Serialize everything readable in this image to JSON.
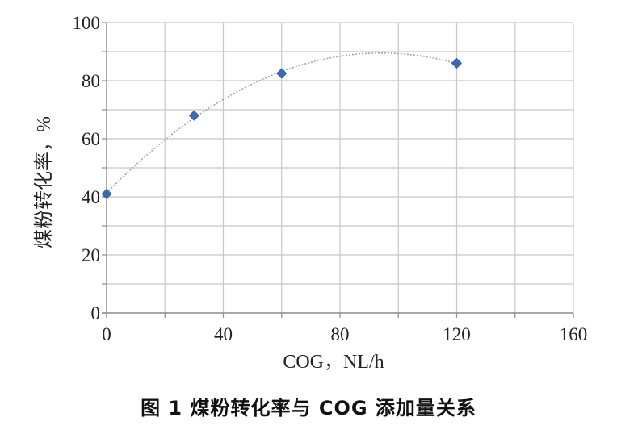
{
  "caption": "图 1 煤粉转化率与 COG 添加量关系",
  "chart_data": {
    "type": "scatter",
    "title": "",
    "xlabel": "COG，NL/h",
    "ylabel": "煤粉转化率，%",
    "xlim": [
      0,
      160
    ],
    "ylim": [
      0,
      100
    ],
    "x_ticks": [
      0,
      40,
      80,
      120,
      160
    ],
    "y_ticks": [
      0,
      20,
      40,
      60,
      80,
      100
    ],
    "grid": true,
    "series": [
      {
        "x": [
          0,
          30,
          60,
          120
        ],
        "y": [
          41,
          68,
          82.5,
          86
        ],
        "color": "#3a6cb4",
        "marker": "diamond",
        "trendline": "polynomial",
        "trend_color": "#a6a6a6"
      }
    ]
  }
}
